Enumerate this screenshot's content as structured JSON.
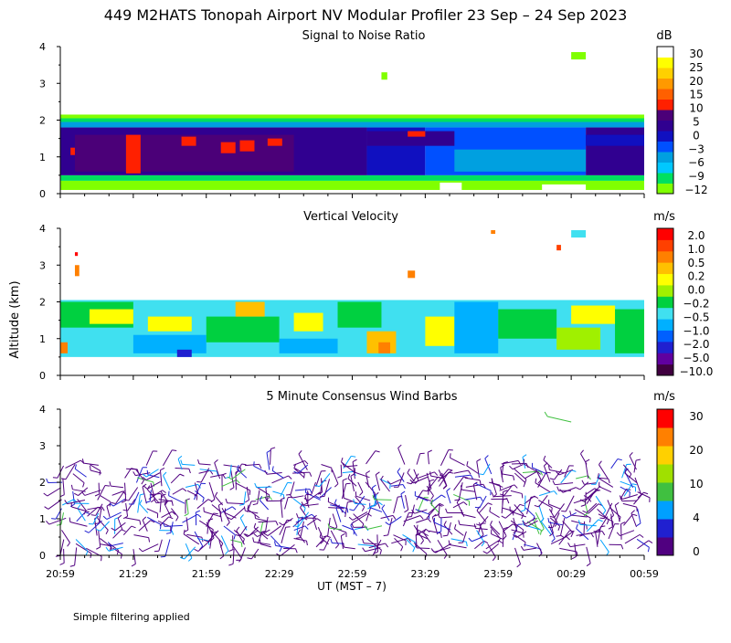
{
  "title": "449 M2HATS Tonopah Airport NV Modular Profiler 23 Sep – 24 Sep 2023",
  "ylabel": "Altitude (km)",
  "xlabel": "UT  (MST – 7)",
  "footnote": "Simple filtering applied",
  "colors": {
    "snr": [
      "#80ff00",
      "#00e060",
      "#00c8ff",
      "#00a0e0",
      "#0050ff",
      "#1010c0",
      "#300090",
      "#4b0078",
      "#ff2000",
      "#ff6000",
      "#ff9900",
      "#ffd000",
      "#ffff00",
      "#ffffff"
    ],
    "vv": [
      "#400040",
      "#6000a0",
      "#2020d0",
      "#0060ff",
      "#00b0ff",
      "#40e0f0",
      "#00d040",
      "#a0f000",
      "#ffff00",
      "#ffc000",
      "#ff8000",
      "#ff4000",
      "#ff0000"
    ],
    "wind": [
      "#500080",
      "#2020d0",
      "#00a0ff",
      "#40c040",
      "#a0e000",
      "#ffd000",
      "#ff8000",
      "#ff0000"
    ]
  },
  "chart_data": [
    {
      "type": "heatmap",
      "title": "Signal to Noise Ratio",
      "units": "dB",
      "xlabel": "UT  (MST – 7)",
      "ylabel": "Altitude (km)",
      "x_ticks": [
        "20:59",
        "21:29",
        "21:59",
        "22:29",
        "22:59",
        "23:29",
        "23:59",
        "00:29",
        "00:59"
      ],
      "xlim_hours": [
        0,
        4
      ],
      "ylim": [
        0,
        4
      ],
      "y_ticks": [
        "0",
        "1",
        "2",
        "3",
        "4"
      ],
      "colorbar_labels": [
        "30",
        "25",
        "20",
        "15",
        "10",
        "5",
        "0",
        "−3",
        "−6",
        "−9",
        "−12"
      ],
      "cells": [
        {
          "t0": 0,
          "t1": 4,
          "z0": 0.1,
          "z1": 0.35,
          "c": 0
        },
        {
          "t0": 0,
          "t1": 4,
          "z0": 0.35,
          "z1": 0.5,
          "c": 1
        },
        {
          "t0": 0,
          "t1": 4,
          "z0": 1.8,
          "z1": 1.95,
          "c": 3
        },
        {
          "t0": 0,
          "t1": 4,
          "z0": 1.95,
          "z1": 2.05,
          "c": 1
        },
        {
          "t0": 0,
          "t1": 4,
          "z0": 2.05,
          "z1": 2.15,
          "c": 0
        },
        {
          "t0": 0,
          "t1": 2.1,
          "z0": 0.5,
          "z1": 1.8,
          "c": 6
        },
        {
          "t0": 2.1,
          "t1": 2.5,
          "z0": 0.5,
          "z1": 1.8,
          "c": 5
        },
        {
          "t0": 2.5,
          "t1": 3.6,
          "z0": 0.5,
          "z1": 1.8,
          "c": 4
        },
        {
          "t0": 3.6,
          "t1": 4,
          "z0": 0.5,
          "z1": 1.8,
          "c": 6
        },
        {
          "t0": 0.1,
          "t1": 1.6,
          "z0": 0.6,
          "z1": 1.6,
          "c": 7
        },
        {
          "t0": 2.1,
          "t1": 2.7,
          "z0": 1.3,
          "z1": 1.7,
          "c": 6
        },
        {
          "t0": 2.7,
          "t1": 3.6,
          "z0": 0.6,
          "z1": 1.2,
          "c": 3
        },
        {
          "t0": 3.6,
          "t1": 4,
          "z0": 1.3,
          "z1": 1.6,
          "c": 5
        },
        {
          "t0": 0.45,
          "t1": 0.55,
          "z0": 0.55,
          "z1": 1.6,
          "c": 8
        },
        {
          "t0": 0.07,
          "t1": 0.1,
          "z0": 1.05,
          "z1": 1.25,
          "c": 8
        },
        {
          "t0": 0.83,
          "t1": 0.93,
          "z0": 1.3,
          "z1": 1.55,
          "c": 8
        },
        {
          "t0": 1.1,
          "t1": 1.2,
          "z0": 1.1,
          "z1": 1.4,
          "c": 8
        },
        {
          "t0": 1.23,
          "t1": 1.33,
          "z0": 1.15,
          "z1": 1.45,
          "c": 8
        },
        {
          "t0": 1.42,
          "t1": 1.52,
          "z0": 1.3,
          "z1": 1.5,
          "c": 8
        },
        {
          "t0": 2.38,
          "t1": 2.5,
          "z0": 1.55,
          "z1": 1.7,
          "c": 8
        },
        {
          "t0": 2.6,
          "t1": 2.75,
          "z0": 0.1,
          "z1": 0.3,
          "c": 13
        },
        {
          "t0": 3.3,
          "t1": 3.6,
          "z0": 0.1,
          "z1": 0.25,
          "c": 13
        },
        {
          "t0": 2.2,
          "t1": 2.24,
          "z0": 3.1,
          "z1": 3.3,
          "c": 0
        },
        {
          "t0": 3.5,
          "t1": 3.6,
          "z0": 3.65,
          "z1": 3.85,
          "c": 0
        }
      ]
    },
    {
      "type": "heatmap",
      "title": "Vertical Velocity",
      "units": "m/s",
      "xlabel": "UT  (MST – 7)",
      "ylabel": "Altitude (km)",
      "x_ticks": [
        "20:59",
        "21:29",
        "21:59",
        "22:29",
        "22:59",
        "23:29",
        "23:59",
        "00:29",
        "00:59"
      ],
      "xlim_hours": [
        0,
        4
      ],
      "ylim": [
        0,
        4
      ],
      "y_ticks": [
        "0",
        "1",
        "2",
        "3",
        "4"
      ],
      "colorbar_labels": [
        "2.0",
        "1.0",
        "0.5",
        "0.2",
        "0.0",
        "−0.2",
        "−0.5",
        "−1.0",
        "−2.0",
        "−5.0",
        "−10.0"
      ],
      "cells": [
        {
          "t0": 0,
          "t1": 4,
          "z0": 0.5,
          "z1": 2.05,
          "c": 5
        },
        {
          "t0": 0,
          "t1": 0.5,
          "z0": 1.3,
          "z1": 2.0,
          "c": 6
        },
        {
          "t0": 0.5,
          "t1": 1.0,
          "z0": 0.6,
          "z1": 1.1,
          "c": 4
        },
        {
          "t0": 0.2,
          "t1": 0.5,
          "z0": 1.4,
          "z1": 1.8,
          "c": 8
        },
        {
          "t0": 0.6,
          "t1": 0.9,
          "z0": 1.2,
          "z1": 1.6,
          "c": 8
        },
        {
          "t0": 1.0,
          "t1": 1.5,
          "z0": 0.9,
          "z1": 1.6,
          "c": 6
        },
        {
          "t0": 1.2,
          "t1": 1.4,
          "z0": 1.6,
          "z1": 2.0,
          "c": 9
        },
        {
          "t0": 1.5,
          "t1": 1.9,
          "z0": 0.6,
          "z1": 1.0,
          "c": 4
        },
        {
          "t0": 1.6,
          "t1": 1.8,
          "z0": 1.2,
          "z1": 1.7,
          "c": 8
        },
        {
          "t0": 1.9,
          "t1": 2.2,
          "z0": 1.3,
          "z1": 2.0,
          "c": 6
        },
        {
          "t0": 2.1,
          "t1": 2.3,
          "z0": 0.6,
          "z1": 1.2,
          "c": 9
        },
        {
          "t0": 2.18,
          "t1": 2.26,
          "z0": 0.6,
          "z1": 0.9,
          "c": 10
        },
        {
          "t0": 2.5,
          "t1": 2.7,
          "z0": 0.8,
          "z1": 1.6,
          "c": 8
        },
        {
          "t0": 2.7,
          "t1": 3.0,
          "z0": 0.6,
          "z1": 2.0,
          "c": 4
        },
        {
          "t0": 3.0,
          "t1": 3.4,
          "z0": 1.0,
          "z1": 1.8,
          "c": 6
        },
        {
          "t0": 3.4,
          "t1": 3.7,
          "z0": 0.7,
          "z1": 1.3,
          "c": 7
        },
        {
          "t0": 3.5,
          "t1": 3.8,
          "z0": 1.4,
          "z1": 1.9,
          "c": 8
        },
        {
          "t0": 3.8,
          "t1": 4.0,
          "z0": 0.6,
          "z1": 1.8,
          "c": 6
        },
        {
          "t0": 0.0,
          "t1": 0.05,
          "z0": 0.6,
          "z1": 0.9,
          "c": 10
        },
        {
          "t0": 0.8,
          "t1": 0.9,
          "z0": 0.5,
          "z1": 0.7,
          "c": 2
        },
        {
          "t0": 2.38,
          "t1": 2.43,
          "z0": 2.65,
          "z1": 2.85,
          "c": 10
        },
        {
          "t0": 0.1,
          "t1": 0.13,
          "z0": 2.7,
          "z1": 3.0,
          "c": 10
        },
        {
          "t0": 0.1,
          "t1": 0.12,
          "z0": 3.25,
          "z1": 3.35,
          "c": 12
        },
        {
          "t0": 3.4,
          "t1": 3.43,
          "z0": 3.4,
          "z1": 3.55,
          "c": 11
        },
        {
          "t0": 3.5,
          "t1": 3.6,
          "z0": 3.75,
          "z1": 3.95,
          "c": 5
        },
        {
          "t0": 2.95,
          "t1": 2.98,
          "z0": 3.85,
          "z1": 3.95,
          "c": 10
        }
      ]
    },
    {
      "type": "wind_barbs",
      "title": "5 Minute Consensus Wind Barbs",
      "units": "m/s",
      "xlabel": "UT  (MST – 7)",
      "ylabel": "Altitude (km)",
      "x_ticks": [
        "20:59",
        "21:29",
        "21:59",
        "22:29",
        "22:59",
        "23:29",
        "23:59",
        "00:29",
        "00:59"
      ],
      "xlim_hours": [
        0,
        4
      ],
      "ylim": [
        0,
        4
      ],
      "y_ticks": [
        "0",
        "1",
        "2",
        "3",
        "4"
      ],
      "colorbar_labels": [
        "30",
        "20",
        "10",
        "4",
        "0"
      ],
      "altitude_range_km": [
        0.2,
        2.5
      ],
      "time_step_hours": 0.0833,
      "dominant_speed_class": "0-4 m/s",
      "isolated_barb": {
        "t": 3.45,
        "z": 3.7,
        "speed_class": "10-15 m/s"
      }
    }
  ]
}
